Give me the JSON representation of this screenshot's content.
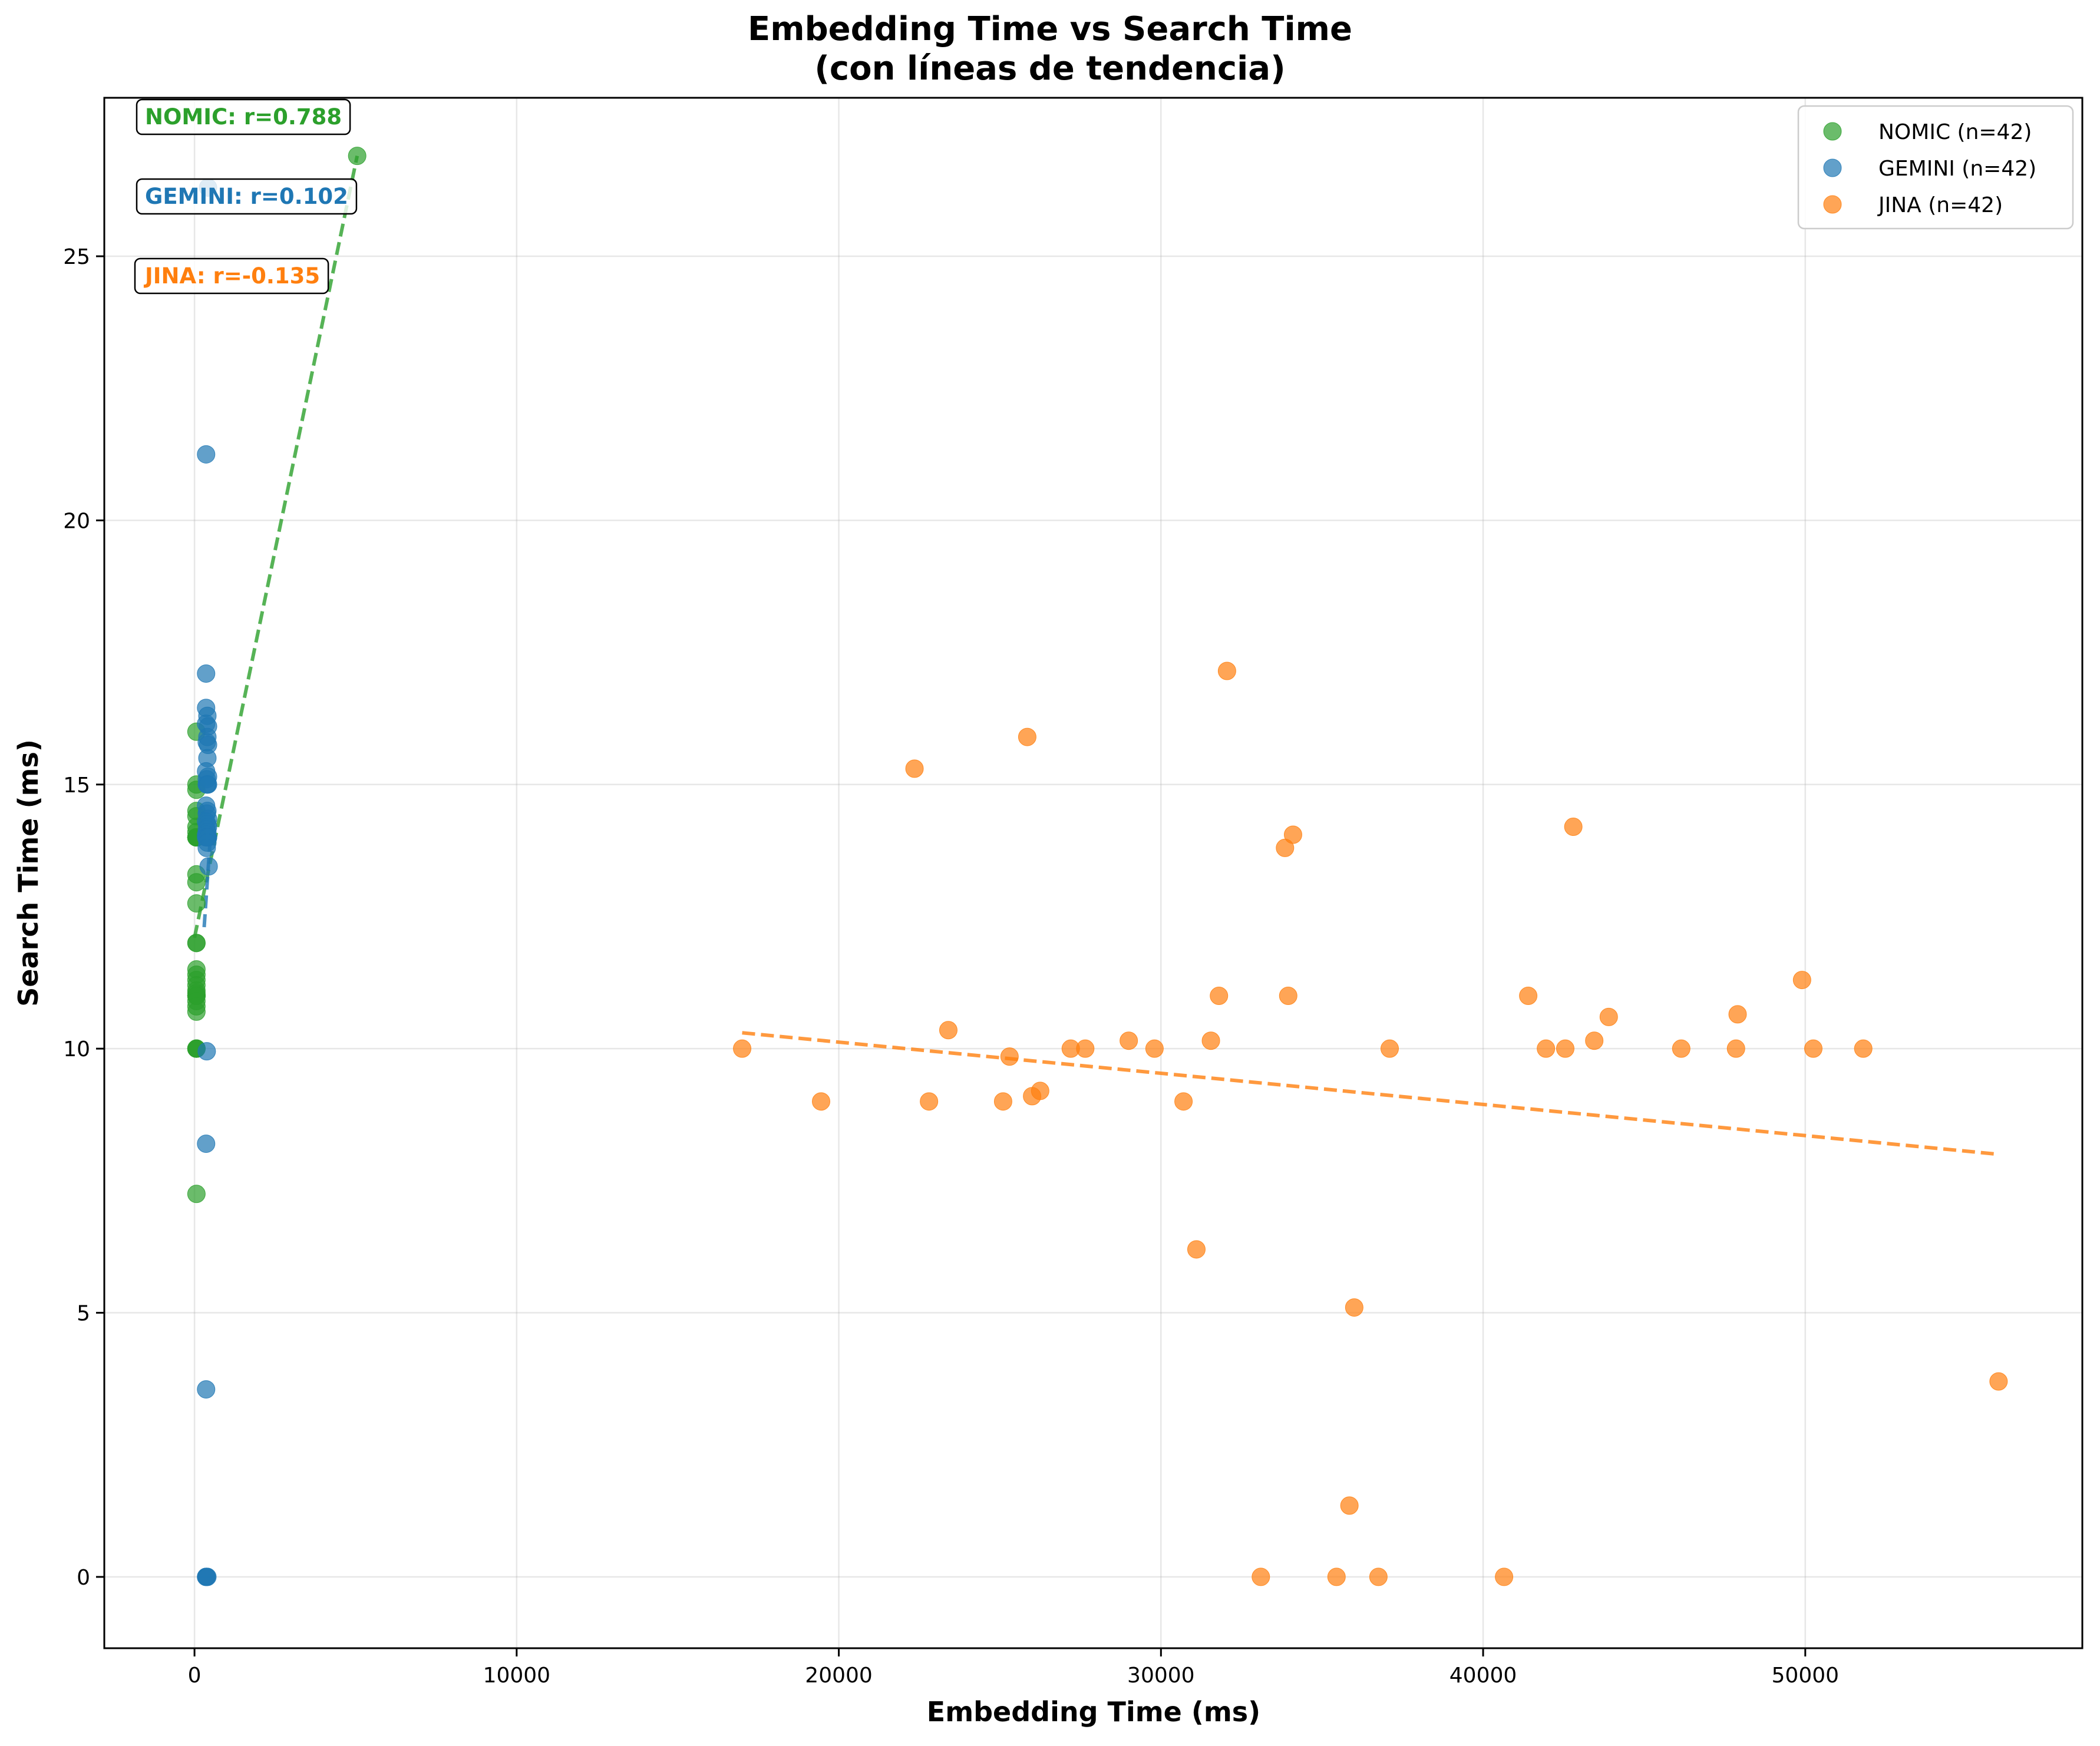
{
  "chart_data": {
    "type": "scatter",
    "title": "Embedding Time vs Search Time",
    "subtitle": "(con líneas de tendencia)",
    "xlabel": "Embedding Time (ms)",
    "ylabel": "Search Time (ms)",
    "xlim": [
      -2800,
      58600
    ],
    "ylim": [
      -1.35,
      28.0
    ],
    "xticks": [
      0,
      10000,
      20000,
      30000,
      40000,
      50000
    ],
    "yticks": [
      0,
      5,
      10,
      15,
      20,
      25
    ],
    "xtick_labels": [
      "0",
      "10000",
      "20000",
      "30000",
      "40000",
      "50000"
    ],
    "ytick_labels": [
      "0",
      "5",
      "10",
      "15",
      "20",
      "25"
    ],
    "grid": true,
    "legend_position": "top-right",
    "series": [
      {
        "name": "NOMIC (n=42)",
        "color": "#2ca02c",
        "correlation_label": "NOMIC: r=0.788",
        "points": [
          [
            5050,
            26.9
          ],
          [
            60,
            16.0
          ],
          [
            60,
            15.0
          ],
          [
            60,
            14.9
          ],
          [
            60,
            14.5
          ],
          [
            60,
            14.4
          ],
          [
            60,
            14.2
          ],
          [
            60,
            14.1
          ],
          [
            60,
            14.0
          ],
          [
            60,
            14.0
          ],
          [
            60,
            14.0
          ],
          [
            60,
            14.0
          ],
          [
            60,
            14.0
          ],
          [
            60,
            14.0
          ],
          [
            60,
            14.0
          ],
          [
            60,
            14.0
          ],
          [
            60,
            14.0
          ],
          [
            60,
            14.0
          ],
          [
            60,
            13.3
          ],
          [
            60,
            13.15
          ],
          [
            60,
            12.75
          ],
          [
            60,
            12.0
          ],
          [
            60,
            12.0
          ],
          [
            60,
            11.5
          ],
          [
            60,
            11.4
          ],
          [
            60,
            11.3
          ],
          [
            60,
            11.2
          ],
          [
            60,
            11.1
          ],
          [
            60,
            11.05
          ],
          [
            60,
            11.0
          ],
          [
            60,
            11.0
          ],
          [
            60,
            11.0
          ],
          [
            60,
            11.0
          ],
          [
            60,
            11.0
          ],
          [
            60,
            10.9
          ],
          [
            60,
            10.8
          ],
          [
            60,
            10.7
          ],
          [
            60,
            10.0
          ],
          [
            60,
            10.0
          ],
          [
            60,
            10.0
          ],
          [
            60,
            10.0
          ],
          [
            60,
            7.25
          ]
        ],
        "trend": [
          [
            0,
            12.1
          ],
          [
            5050,
            26.9
          ]
        ]
      },
      {
        "name": "GEMINI (n=42)",
        "color": "#1f77b4",
        "correlation_label": "GEMINI: r=0.102",
        "points": [
          [
            420,
            26.3
          ],
          [
            360,
            21.25
          ],
          [
            360,
            17.1
          ],
          [
            360,
            16.45
          ],
          [
            400,
            16.3
          ],
          [
            360,
            16.15
          ],
          [
            420,
            16.1
          ],
          [
            400,
            15.9
          ],
          [
            380,
            15.8
          ],
          [
            420,
            15.75
          ],
          [
            400,
            15.5
          ],
          [
            360,
            15.25
          ],
          [
            420,
            15.15
          ],
          [
            380,
            15.1
          ],
          [
            400,
            15.0
          ],
          [
            380,
            15.0
          ],
          [
            420,
            15.0
          ],
          [
            360,
            14.6
          ],
          [
            400,
            14.5
          ],
          [
            380,
            14.45
          ],
          [
            420,
            14.35
          ],
          [
            360,
            14.3
          ],
          [
            400,
            14.25
          ],
          [
            420,
            14.2
          ],
          [
            380,
            14.15
          ],
          [
            400,
            14.1
          ],
          [
            360,
            14.05
          ],
          [
            420,
            14.0
          ],
          [
            400,
            14.0
          ],
          [
            380,
            14.0
          ],
          [
            360,
            14.0
          ],
          [
            420,
            14.0
          ],
          [
            440,
            13.45
          ],
          [
            400,
            13.9
          ],
          [
            380,
            13.8
          ],
          [
            380,
            9.95
          ],
          [
            360,
            8.2
          ],
          [
            360,
            3.55
          ],
          [
            360,
            0.0
          ],
          [
            380,
            0.0
          ],
          [
            400,
            0.0
          ],
          [
            360,
            0.0
          ]
        ],
        "trend": [
          [
            300,
            12.3
          ],
          [
            480,
            13.9
          ]
        ]
      },
      {
        "name": "JINA (n=42)",
        "color": "#ff7f0e",
        "correlation_label": "JINA: r=-0.135",
        "points": [
          [
            17000,
            10.0
          ],
          [
            19450,
            9.0
          ],
          [
            22350,
            15.3
          ],
          [
            22800,
            9.0
          ],
          [
            23400,
            10.35
          ],
          [
            25100,
            9.0
          ],
          [
            25300,
            9.85
          ],
          [
            25850,
            15.9
          ],
          [
            26000,
            9.1
          ],
          [
            26250,
            9.2
          ],
          [
            27200,
            10.0
          ],
          [
            27650,
            10.0
          ],
          [
            29000,
            10.15
          ],
          [
            29800,
            10.0
          ],
          [
            30700,
            9.0
          ],
          [
            31100,
            6.2
          ],
          [
            31550,
            10.15
          ],
          [
            31800,
            11.0
          ],
          [
            32050,
            17.15
          ],
          [
            33100,
            0.0
          ],
          [
            33850,
            13.8
          ],
          [
            33950,
            11.0
          ],
          [
            34100,
            14.05
          ],
          [
            35450,
            0.0
          ],
          [
            35850,
            1.35
          ],
          [
            36000,
            5.1
          ],
          [
            36750,
            0.0
          ],
          [
            37100,
            10.0
          ],
          [
            40650,
            0.0
          ],
          [
            41400,
            11.0
          ],
          [
            41950,
            10.0
          ],
          [
            42550,
            10.0
          ],
          [
            42800,
            14.2
          ],
          [
            43450,
            10.15
          ],
          [
            43900,
            10.6
          ],
          [
            46150,
            10.0
          ],
          [
            47850,
            10.0
          ],
          [
            47900,
            10.65
          ],
          [
            49900,
            11.3
          ],
          [
            50250,
            10.0
          ],
          [
            51800,
            10.0
          ],
          [
            56000,
            3.7
          ]
        ],
        "trend": [
          [
            17000,
            10.3
          ],
          [
            56000,
            8.0
          ]
        ]
      }
    ]
  }
}
